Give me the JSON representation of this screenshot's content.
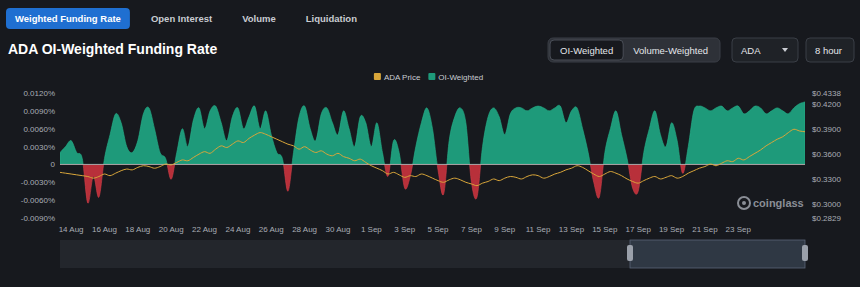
{
  "chart_data": {
    "type": "area",
    "title": "ADA OI-Weighted Funding Rate",
    "tabs": [
      "Weighted Funding Rate",
      "Open Interest",
      "Volume",
      "Liquidation"
    ],
    "toggle": [
      "OI-Weighted",
      "Volume-Weighted"
    ],
    "selectors": [
      "ADA",
      "8 hour"
    ],
    "watermark": "coinglass",
    "legend": "top",
    "grid": false,
    "categories": [
      null,
      null,
      "14 Aug",
      null,
      null,
      null,
      null,
      null,
      "16 Aug",
      null,
      null,
      null,
      null,
      null,
      "18 Aug",
      null,
      null,
      null,
      null,
      null,
      "20 Aug",
      null,
      null,
      null,
      null,
      null,
      "22 Aug",
      null,
      null,
      null,
      null,
      null,
      "24 Aug",
      null,
      null,
      null,
      null,
      null,
      "26 Aug",
      null,
      null,
      null,
      null,
      null,
      "28 Aug",
      null,
      null,
      null,
      null,
      null,
      "30 Aug",
      null,
      null,
      null,
      null,
      null,
      "1 Sep",
      null,
      null,
      null,
      null,
      null,
      "3 Sep",
      null,
      null,
      null,
      null,
      null,
      "5 Sep",
      null,
      null,
      null,
      null,
      null,
      "7 Sep",
      null,
      null,
      null,
      null,
      null,
      "9 Sep",
      null,
      null,
      null,
      null,
      null,
      "11 Sep",
      null,
      null,
      null,
      null,
      null,
      "13 Sep",
      null,
      null,
      null,
      null,
      null,
      "15 Sep",
      null,
      null,
      null,
      null,
      null,
      "17 Sep",
      null,
      null,
      null,
      null,
      null,
      "19 Sep",
      null,
      null,
      null,
      null,
      null,
      "21 Sep",
      null,
      null,
      null,
      null,
      null,
      "23 Sep",
      null,
      null,
      null,
      null,
      null,
      null,
      null,
      null,
      null,
      null,
      null,
      null
    ],
    "series": [
      {
        "name": "ADA Price",
        "type": "line",
        "axis": "y2",
        "color": "#d9a63a",
        "values": [
          0.338,
          0.337,
          0.336,
          0.335,
          0.334,
          0.333,
          0.331,
          0.333,
          0.336,
          0.334,
          0.337,
          0.34,
          0.342,
          0.341,
          0.344,
          0.346,
          0.345,
          0.343,
          0.345,
          0.348,
          0.347,
          0.35,
          0.353,
          0.352,
          0.356,
          0.36,
          0.363,
          0.361,
          0.366,
          0.37,
          0.368,
          0.372,
          0.376,
          0.374,
          0.379,
          0.383,
          0.386,
          0.384,
          0.381,
          0.378,
          0.375,
          0.372,
          0.37,
          0.366,
          0.369,
          0.365,
          0.362,
          0.364,
          0.36,
          0.358,
          0.361,
          0.357,
          0.355,
          0.352,
          0.354,
          0.35,
          0.346,
          0.343,
          0.34,
          0.336,
          0.338,
          0.335,
          0.332,
          0.334,
          0.333,
          0.336,
          0.334,
          0.331,
          0.328,
          0.326,
          0.329,
          0.331,
          0.329,
          0.326,
          0.324,
          0.322,
          0.325,
          0.327,
          0.33,
          0.328,
          0.331,
          0.333,
          0.332,
          0.33,
          0.333,
          0.335,
          0.334,
          0.331,
          0.333,
          0.336,
          0.338,
          0.341,
          0.343,
          0.346,
          0.344,
          0.34,
          0.336,
          0.333,
          0.336,
          0.339,
          0.337,
          0.334,
          0.33,
          0.327,
          0.325,
          0.328,
          0.331,
          0.333,
          0.33,
          0.332,
          0.334,
          0.331,
          0.333,
          0.337,
          0.34,
          0.343,
          0.345,
          0.348,
          0.346,
          0.349,
          0.352,
          0.351,
          0.355,
          0.353,
          0.357,
          0.361,
          0.365,
          0.37,
          0.374,
          0.378,
          0.381,
          0.386,
          0.39,
          0.388,
          0.387
        ]
      },
      {
        "name": "OI-Weighted",
        "type": "area",
        "color": "#1e9a7a",
        "values": [
          0.002,
          0.003,
          0.004,
          0.002,
          0.001,
          -0.0065,
          -0.002,
          -0.0055,
          0.001,
          0.005,
          0.0085,
          0.007,
          0.003,
          0.002,
          0.004,
          0.0085,
          0.0095,
          0.006,
          0.002,
          0.001,
          -0.0025,
          0.002,
          0.006,
          0.003,
          0.0075,
          0.0095,
          0.006,
          0.009,
          0.0098,
          0.007,
          0.004,
          0.008,
          0.0095,
          0.006,
          0.008,
          0.0098,
          0.006,
          0.009,
          0.005,
          0.002,
          0.001,
          -0.0045,
          0.002,
          0.008,
          0.0098,
          0.006,
          0.004,
          0.0085,
          0.0095,
          0.007,
          0.005,
          0.009,
          0.006,
          0.003,
          0.008,
          0.007,
          0.003,
          0.007,
          0.002,
          -0.002,
          0.004,
          0.002,
          -0.004,
          -0.002,
          0.003,
          0.007,
          0.0095,
          0.006,
          -0.001,
          -0.005,
          0.004,
          0.008,
          0.0095,
          0.007,
          -0.003,
          -0.0055,
          0.003,
          0.008,
          0.0095,
          0.008,
          0.005,
          0.0085,
          0.0095,
          0.0095,
          0.009,
          0.0095,
          0.0098,
          0.0095,
          0.009,
          0.0095,
          0.0098,
          0.007,
          0.009,
          0.0095,
          0.006,
          0.002,
          -0.003,
          -0.0055,
          0.002,
          0.006,
          0.009,
          0.005,
          0.001,
          -0.004,
          -0.0045,
          0.002,
          0.006,
          0.009,
          0.005,
          0.003,
          0.007,
          0.004,
          -0.0015,
          0.003,
          0.009,
          0.0098,
          0.0095,
          0.009,
          0.0095,
          0.0098,
          0.009,
          0.0095,
          0.0098,
          0.0085,
          0.009,
          0.0098,
          0.0095,
          0.0085,
          0.009,
          0.0095,
          0.009,
          0.0085,
          0.0095,
          0.0102,
          0.0105
        ]
      }
    ],
    "ylim": [
      -0.009,
      0.012
    ],
    "yticks": [
      {
        "value": -0.009,
        "label": "-0.0090%"
      },
      {
        "value": -0.006,
        "label": "-0.0060%"
      },
      {
        "value": -0.003,
        "label": "-0.0030%"
      },
      0,
      {
        "value": 0.003,
        "label": "0.0030%"
      },
      {
        "value": 0.006,
        "label": "0.0060%"
      },
      {
        "value": 0.009,
        "label": "0.0090%"
      },
      {
        "value": 0.012,
        "label": "0.0120%"
      }
    ],
    "y2lim": [
      0.2829,
      0.4338
    ],
    "y2ticks": [
      {
        "value": 0.2829,
        "label": "$0.2829"
      },
      {
        "value": 0.3,
        "label": "$0.3000"
      },
      {
        "value": 0.33,
        "label": "$0.3300"
      },
      {
        "value": 0.36,
        "label": "$0.3600"
      },
      {
        "value": 0.39,
        "label": "$0.3900"
      },
      {
        "value": 0.42,
        "label": "$0.4200"
      },
      {
        "value": 0.4338,
        "label": "$0.4338"
      }
    ]
  }
}
